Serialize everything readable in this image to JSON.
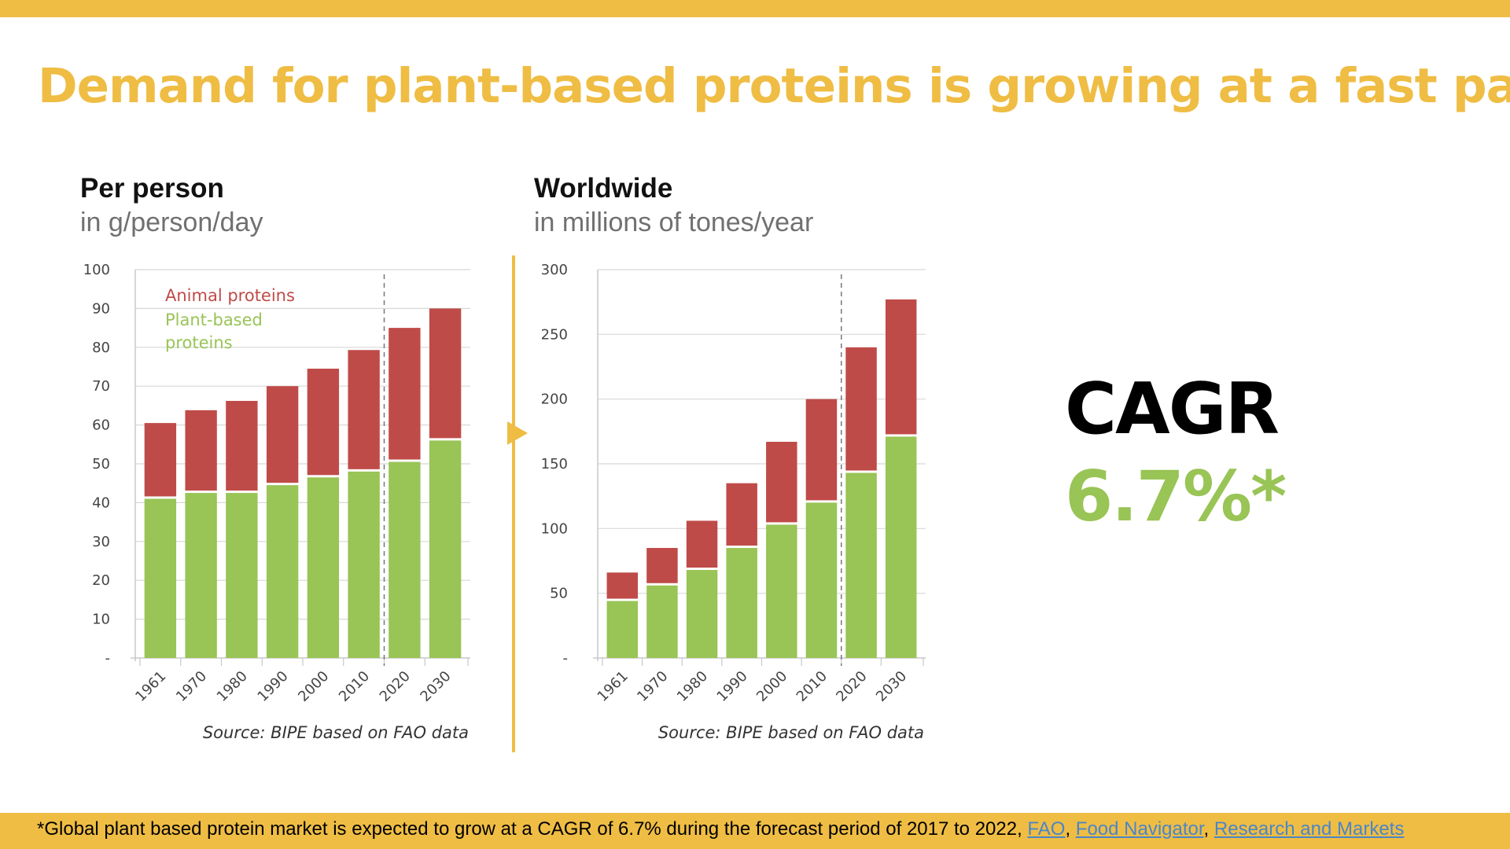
{
  "title": "Demand for plant-based proteins is growing at a fast pace",
  "colors": {
    "accent": "#efbd44",
    "plant": "#99c456",
    "animal": "#bf4b48",
    "link": "#4a86c8"
  },
  "panels": [
    {
      "heading": "Per person",
      "subheading": "in g/person/day"
    },
    {
      "heading": "Worldwide",
      "subheading": "in millions of tones/year"
    }
  ],
  "chart_data": [
    {
      "type": "bar",
      "stacked": true,
      "categories": [
        "1961",
        "1970",
        "1980",
        "1990",
        "2000",
        "2010",
        "2020",
        "2030"
      ],
      "series": [
        {
          "name": "Plant-based proteins",
          "values": [
            41,
            42.5,
            42.5,
            44.5,
            46.5,
            48,
            50.5,
            56
          ]
        },
        {
          "name": "Animal proteins",
          "values": [
            19.5,
            21.3,
            23.7,
            25.5,
            28,
            31.3,
            34.5,
            34
          ]
        }
      ],
      "ylim": [
        0,
        100
      ],
      "yticks": [
        "-",
        "10",
        "20",
        "30",
        "40",
        "50",
        "60",
        "70",
        "80",
        "90",
        "100"
      ],
      "legend": {
        "position": "top-left",
        "animal_label": "Animal proteins",
        "plant_label_line1": "Plant-based",
        "plant_label_line2": "proteins"
      },
      "projection_divider_after": "2010",
      "source": "Source: BIPE based on FAO data"
    },
    {
      "type": "bar",
      "stacked": true,
      "categories": [
        "1961",
        "1970",
        "1980",
        "1990",
        "2000",
        "2010",
        "2020",
        "2030"
      ],
      "series": [
        {
          "name": "Plant-based proteins",
          "values": [
            44,
            56,
            68,
            85,
            103,
            120,
            143,
            171
          ]
        },
        {
          "name": "Animal proteins",
          "values": [
            22,
            29,
            38,
            50,
            64,
            80,
            97,
            106
          ]
        }
      ],
      "ylim": [
        0,
        300
      ],
      "yticks": [
        "-",
        "50",
        "100",
        "150",
        "200",
        "250",
        "300"
      ],
      "projection_divider_after": "2010",
      "source": "Source: BIPE based on FAO data"
    }
  ],
  "cagr": {
    "label": "CAGR",
    "value": "6.7%*"
  },
  "footer": {
    "text": "*Global plant based protein market is expected to grow at a CAGR of 6.7% during the forecast period of 2017 to 2022, ",
    "links": [
      "FAO",
      "Food Navigator",
      "Research and Markets"
    ]
  }
}
